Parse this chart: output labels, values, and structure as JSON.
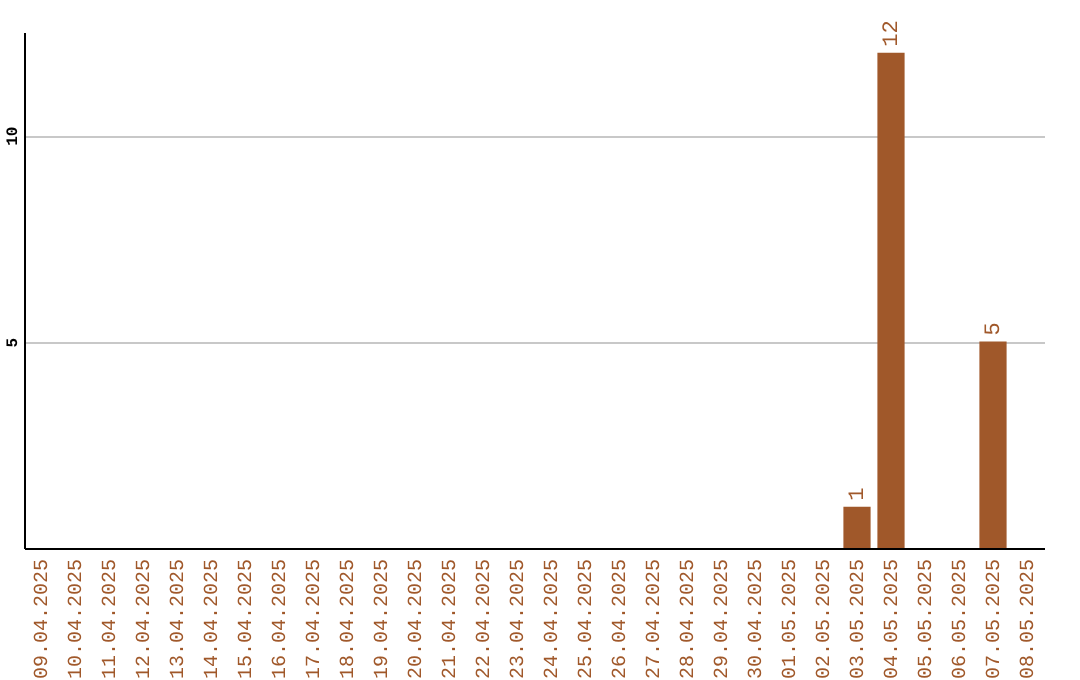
{
  "chart_data": {
    "type": "bar",
    "categories": [
      "09.04.2025",
      "10.04.2025",
      "11.04.2025",
      "12.04.2025",
      "13.04.2025",
      "14.04.2025",
      "15.04.2025",
      "16.04.2025",
      "17.04.2025",
      "18.04.2025",
      "19.04.2025",
      "20.04.2025",
      "21.04.2025",
      "22.04.2025",
      "23.04.2025",
      "24.04.2025",
      "25.04.2025",
      "26.04.2025",
      "27.04.2025",
      "28.04.2025",
      "29.04.2025",
      "30.04.2025",
      "01.05.2025",
      "02.05.2025",
      "03.05.2025",
      "04.05.2025",
      "05.05.2025",
      "06.05.2025",
      "07.05.2025",
      "08.05.2025"
    ],
    "values": [
      0,
      0,
      0,
      0,
      0,
      0,
      0,
      0,
      0,
      0,
      0,
      0,
      0,
      0,
      0,
      0,
      0,
      0,
      0,
      0,
      0,
      0,
      0,
      0,
      1,
      12,
      0,
      0,
      5,
      0
    ],
    "value_labels": [
      null,
      null,
      null,
      null,
      null,
      null,
      null,
      null,
      null,
      null,
      null,
      null,
      null,
      null,
      null,
      null,
      null,
      null,
      null,
      null,
      null,
      null,
      null,
      null,
      "1",
      "12",
      null,
      null,
      "5",
      null
    ],
    "color": "#a0582a",
    "ylim": [
      0,
      12.5
    ],
    "yticks": [
      5,
      10
    ],
    "grid": "y"
  }
}
